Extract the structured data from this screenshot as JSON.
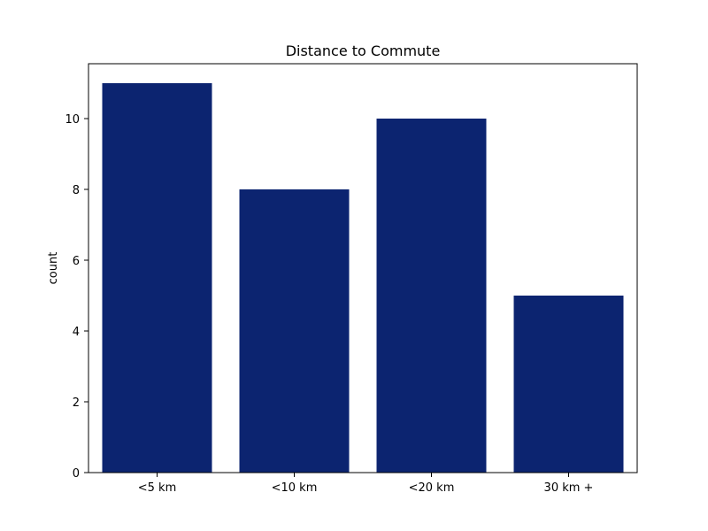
{
  "chart_data": {
    "type": "bar",
    "title": "Distance to Commute",
    "xlabel": "",
    "ylabel": "count",
    "categories": [
      "<5 km",
      "<10 km",
      "<20 km",
      "30 km +"
    ],
    "values": [
      11,
      8,
      10,
      5
    ],
    "ylim": [
      0,
      11.55
    ],
    "yticks": [
      0,
      2,
      4,
      6,
      8,
      10
    ],
    "bar_color": "#0c2470",
    "grid": false,
    "legend": "none"
  }
}
